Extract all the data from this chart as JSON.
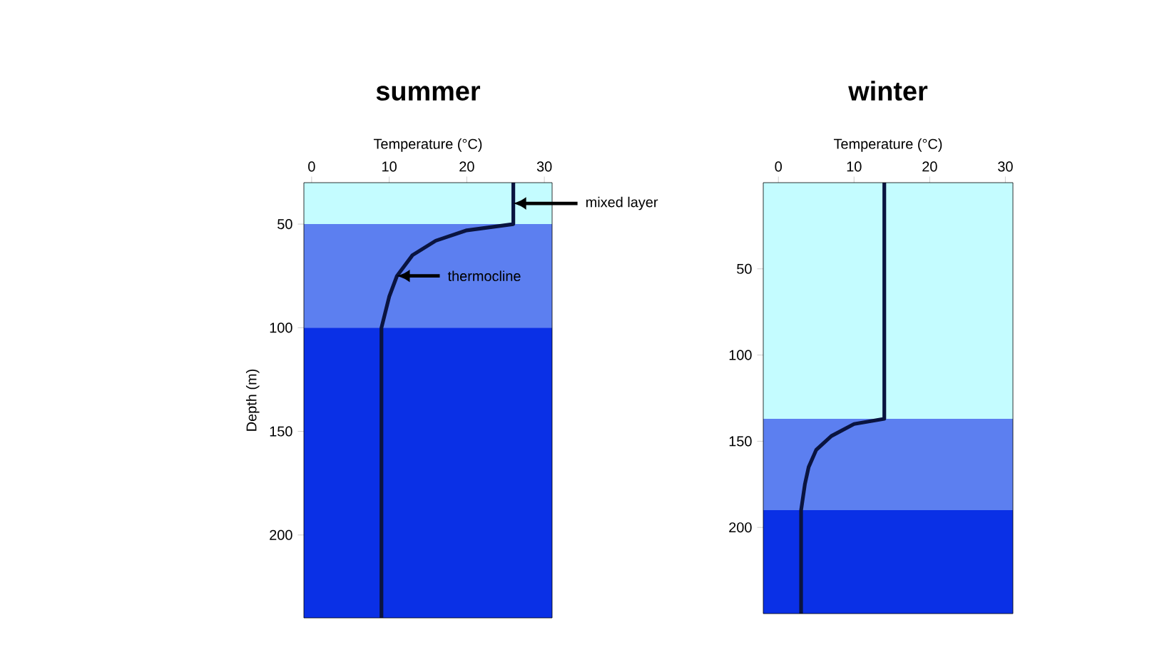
{
  "chart_data": [
    {
      "type": "line",
      "title": "summer",
      "xlabel": "Temperature (°C)",
      "ylabel": "Depth (m)",
      "xlim": [
        -1,
        31
      ],
      "ylim": [
        240,
        30
      ],
      "xticks": [
        0,
        10,
        20,
        30
      ],
      "yticks": [
        50,
        100,
        150,
        200
      ],
      "series": [
        {
          "color": "#0a1440",
          "x": [
            26,
            26,
            20,
            16,
            13,
            11,
            10,
            9,
            9
          ],
          "values": [
            30,
            50,
            53,
            58,
            65,
            75,
            85,
            100,
            240
          ]
        }
      ],
      "bands": [
        {
          "axis": "y",
          "from": 30,
          "to": 50,
          "color": "#c4fcff"
        },
        {
          "axis": "y",
          "from": 50,
          "to": 100,
          "color": "#5c7ff0"
        },
        {
          "axis": "y",
          "from": 100,
          "to": 240,
          "color": "#0a30e6"
        }
      ],
      "annotations": [
        {
          "text": "mixed layer",
          "x": 26,
          "y": 40
        },
        {
          "text": "thermocline",
          "x": 11,
          "y": 75
        }
      ]
    },
    {
      "type": "line",
      "title": "winter",
      "xlabel": "Temperature (°C)",
      "xlim": [
        -2,
        31
      ],
      "ylim": [
        250,
        0
      ],
      "xticks": [
        0,
        10,
        20,
        30
      ],
      "yticks": [
        50,
        100,
        150,
        200
      ],
      "series": [
        {
          "color": "#0a1440",
          "x": [
            14,
            14,
            10,
            7,
            5,
            4,
            3.5,
            3,
            3
          ],
          "values": [
            0,
            137,
            140,
            147,
            155,
            165,
            175,
            190,
            250
          ]
        }
      ],
      "bands": [
        {
          "axis": "y",
          "from": 0,
          "to": 137,
          "color": "#c4fcff"
        },
        {
          "axis": "y",
          "from": 137,
          "to": 190,
          "color": "#5c7ff0"
        },
        {
          "axis": "y",
          "from": 190,
          "to": 250,
          "color": "#0a30e6"
        }
      ]
    }
  ]
}
